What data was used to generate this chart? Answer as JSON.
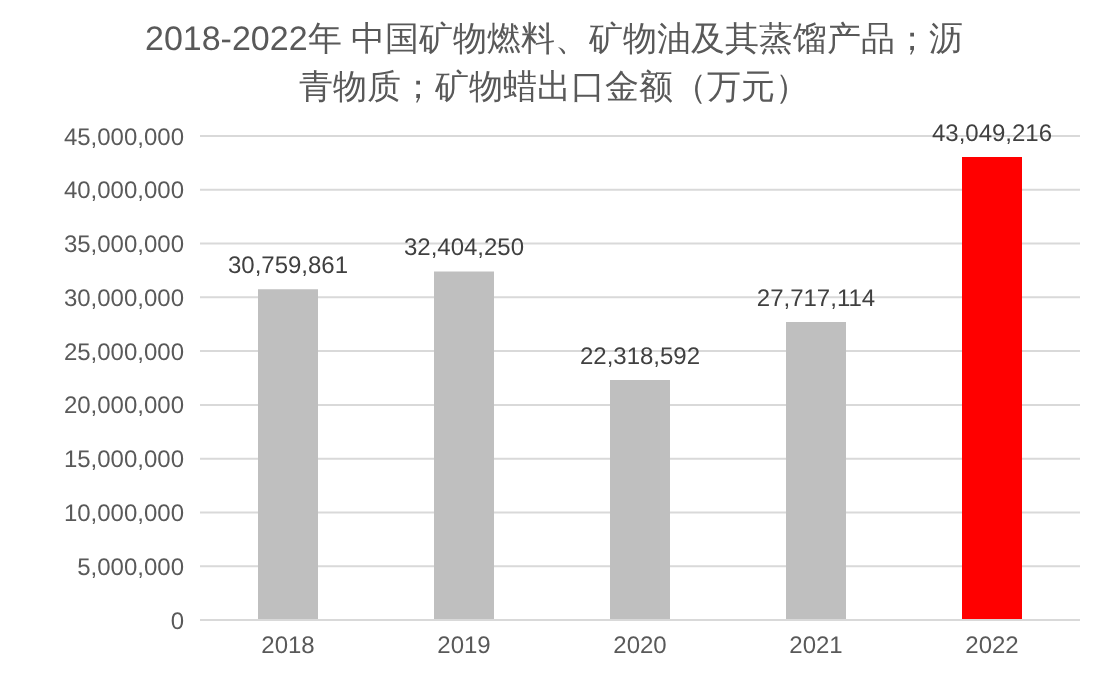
{
  "chart_data": {
    "type": "bar",
    "title": "2018-2022年 中国矿物燃料、矿物油及其蒸馏产品；沥青物质；矿物蜡出口金额（万元）",
    "categories": [
      "2018",
      "2019",
      "2020",
      "2021",
      "2022"
    ],
    "values": [
      30759861,
      32404250,
      22318592,
      27717114,
      43049216
    ],
    "colors": [
      "#bfbfbf",
      "#bfbfbf",
      "#bfbfbf",
      "#bfbfbf",
      "#ff0000"
    ],
    "ylim": [
      0,
      45000000
    ],
    "yticks": [
      0,
      {
        "value": 5000000,
        "label": "5,000,000"
      },
      {
        "value": 10000000,
        "label": "10,000,000"
      },
      {
        "value": 15000000,
        "label": "15,000,000"
      },
      {
        "value": 20000000,
        "label": "20,000,000"
      },
      {
        "value": 25000000,
        "label": "25,000,000"
      },
      {
        "value": 30000000,
        "label": "30,000,000"
      },
      {
        "value": 35000000,
        "label": "35,000,000"
      },
      {
        "value": 40000000,
        "label": "40,000,000"
      },
      {
        "value": 45000000,
        "label": "45,000,000"
      }
    ],
    "value_labels": [
      "30,759,861",
      "32,404,250",
      "22,318,592",
      "27,717,114",
      "43,049,216"
    ],
    "grid": "y"
  }
}
